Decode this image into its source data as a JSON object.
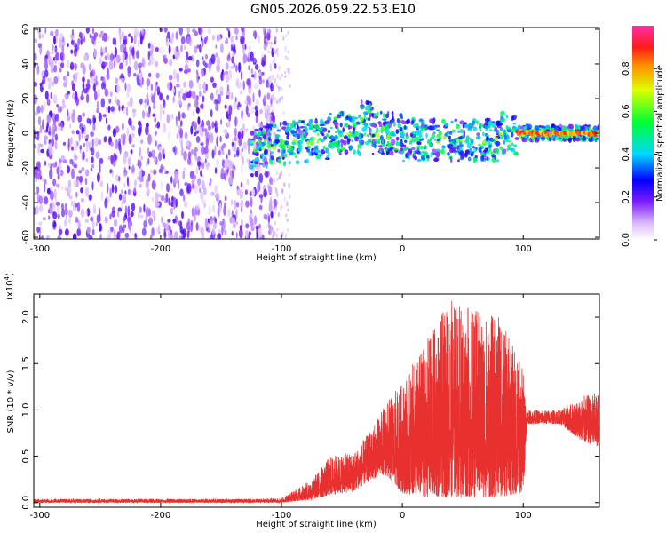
{
  "title": "GN05.2026.059.22.53.E10",
  "chart_data": [
    {
      "type": "heatmap",
      "xlabel": "Height of straight line (km)",
      "ylabel": "Frequency (Hz)",
      "xlim": [
        -305,
        163
      ],
      "ylim": [
        -61,
        61
      ],
      "xticks": [
        -300,
        -200,
        -100,
        0,
        100
      ],
      "xtick_labels": [
        "-300",
        "-200",
        "-100",
        "0",
        "100"
      ],
      "yticks": [
        60,
        40,
        20,
        0,
        -20,
        -40,
        -60
      ],
      "ytick_labels": [
        "60",
        "40",
        "20",
        "0",
        "-20",
        "-40",
        "-60"
      ],
      "colorbar": {
        "label": "Normalized spectral amplitude",
        "range": [
          0,
          1
        ],
        "ticks": [
          0.0,
          0.2,
          0.4,
          0.6,
          0.8
        ],
        "tick_labels": [
          "0.0",
          "0.2",
          "0.4",
          "0.6",
          "0.8"
        ]
      },
      "regions": [
        {
          "name": "noise",
          "x_range": [
            -305,
            -105
          ],
          "amplitude": 0.15
        },
        {
          "name": "signal-band",
          "x_range": [
            -125,
            163
          ],
          "center_freq": 0,
          "amplitude": 0.35
        },
        {
          "name": "strong-line",
          "x_range": [
            95,
            163
          ],
          "center_freq": 0,
          "amplitude": 0.95
        }
      ]
    },
    {
      "type": "line",
      "xlabel": "Height of straight line (km)",
      "ylabel": "SNR (10 * v/v)",
      "y_multiplier": "(x10",
      "y_multiplier_exp": "4",
      "y_multiplier_close": ")",
      "xlim": [
        -305,
        163
      ],
      "ylim": [
        -0.05,
        2.25
      ],
      "xticks": [
        -300,
        -200,
        -100,
        0,
        100
      ],
      "xtick_labels": [
        "-300",
        "-200",
        "-100",
        "0",
        "100"
      ],
      "yticks": [
        0.0,
        0.5,
        1.0,
        1.5,
        2.0
      ],
      "ytick_labels": [
        "0.0",
        "0.5",
        "1.0",
        "1.5",
        "2.0"
      ],
      "series": [
        {
          "name": "SNR",
          "color": "#e8312f",
          "envelope": [
            {
              "x": -305,
              "low": 0.0,
              "high": 0.04
            },
            {
              "x": -120,
              "low": 0.0,
              "high": 0.04
            },
            {
              "x": -100,
              "low": 0.0,
              "high": 0.05
            },
            {
              "x": -75,
              "low": 0.03,
              "high": 0.25
            },
            {
              "x": -60,
              "low": 0.08,
              "high": 0.5
            },
            {
              "x": -40,
              "low": 0.12,
              "high": 0.55
            },
            {
              "x": -25,
              "low": 0.25,
              "high": 0.8
            },
            {
              "x": -15,
              "low": 0.3,
              "high": 1.05
            },
            {
              "x": 0,
              "low": 0.1,
              "high": 1.3
            },
            {
              "x": 20,
              "low": 0.05,
              "high": 1.75
            },
            {
              "x": 40,
              "low": 0.05,
              "high": 2.2
            },
            {
              "x": 60,
              "low": 0.05,
              "high": 2.1
            },
            {
              "x": 80,
              "low": 0.05,
              "high": 2.0
            },
            {
              "x": 100,
              "low": 0.1,
              "high": 1.5
            },
            {
              "x": 103,
              "low": 0.85,
              "high": 1.0
            },
            {
              "x": 130,
              "low": 0.85,
              "high": 1.0
            },
            {
              "x": 150,
              "low": 0.65,
              "high": 1.15
            },
            {
              "x": 163,
              "low": 0.6,
              "high": 1.2
            }
          ]
        }
      ]
    }
  ]
}
